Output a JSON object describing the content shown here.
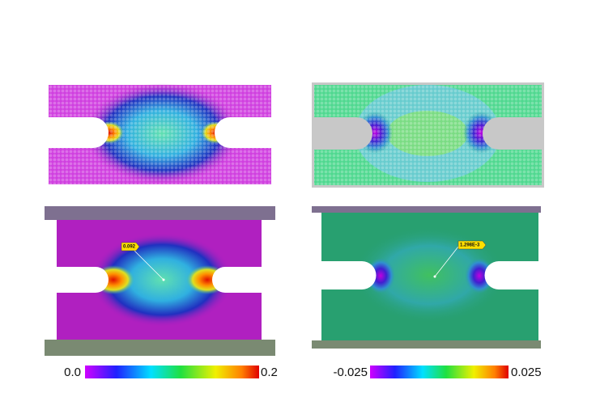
{
  "panels": [
    {
      "annotation": "0.092",
      "colorbar": {
        "min": "0.0",
        "max": "0.2"
      }
    },
    {
      "annotation": "1.298E-3",
      "colorbar": {
        "min": "-0.025",
        "max": "0.025"
      }
    }
  ]
}
